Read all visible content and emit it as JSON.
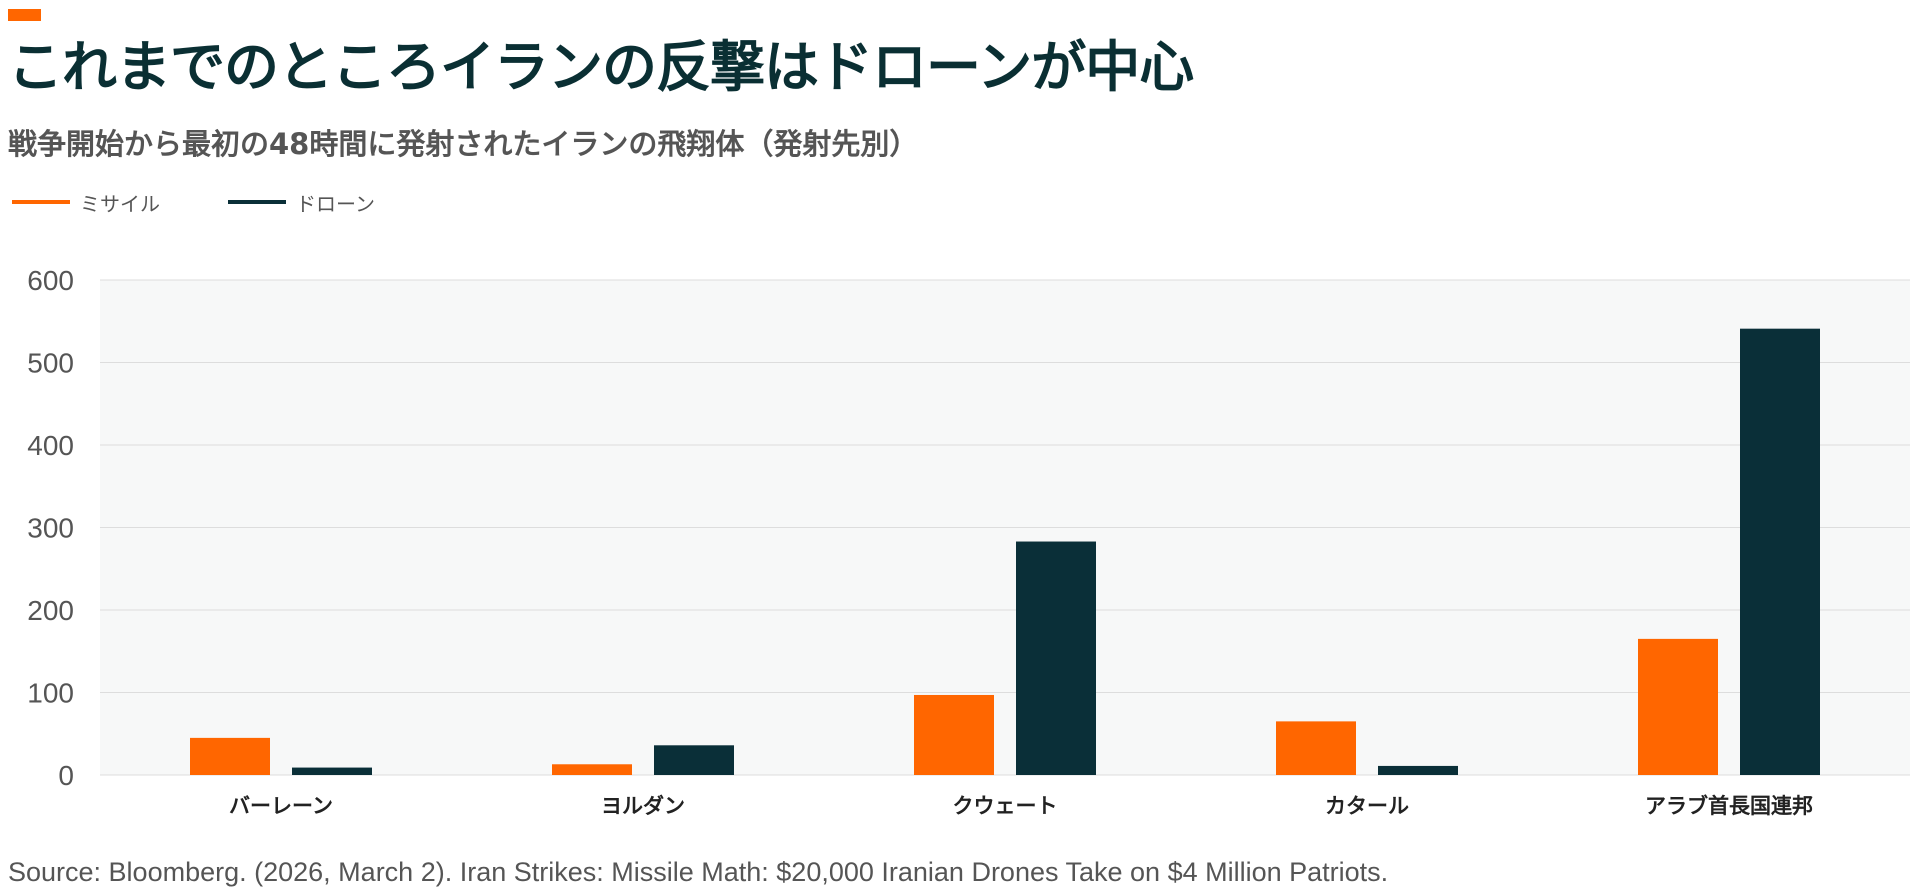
{
  "title": "これまでのところイランの反撃はドローンが中心",
  "subtitle": "戦争開始から最初の48時間に発射されたイランの飛翔体（発射先別）",
  "source": "Source: Bloomberg. (2026, March 2). Iran Strikes: Missile Math: $20,000 Iranian Drones Take on $4 Million Patriots.",
  "colors": {
    "accent": "#ff6600",
    "missile": "#ff6600",
    "drone": "#0a2f38",
    "plot_bg": "#f7f8f8",
    "grid": "#dddddd"
  },
  "chart_data": {
    "type": "bar",
    "title": "",
    "xlabel": "",
    "ylabel": "",
    "ylim": [
      0,
      600
    ],
    "yticks": [
      0,
      100,
      200,
      300,
      400,
      500,
      600
    ],
    "grid": true,
    "legend_position": "top-left",
    "categories": [
      "バーレーン",
      "ヨルダン",
      "クウェート",
      "カタール",
      "アラブ首長国連邦"
    ],
    "series": [
      {
        "name": "ミサイル",
        "values": [
          45,
          13,
          97,
          65,
          165
        ]
      },
      {
        "name": "ドローン",
        "values": [
          9,
          36,
          283,
          11,
          541
        ]
      }
    ]
  }
}
